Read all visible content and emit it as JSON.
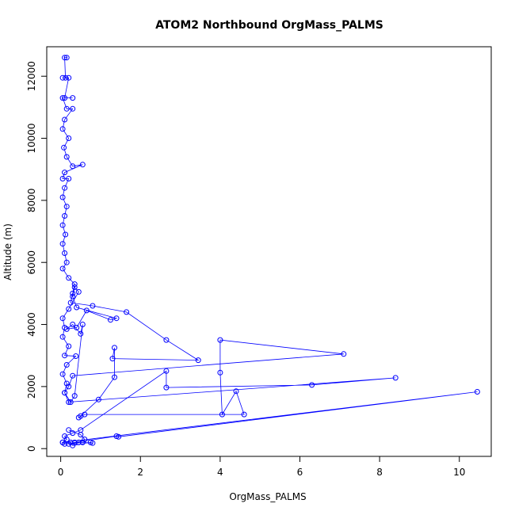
{
  "chart_data": {
    "type": "scatter",
    "title": "ATOM2 Northbound OrgMass_PALMS",
    "xlabel": "OrgMass_PALMS",
    "ylabel": "Altitude (m)",
    "xlim": [
      -0.35,
      10.8
    ],
    "ylim": [
      -250,
      12950
    ],
    "xticks": [
      0,
      2,
      4,
      6,
      8,
      10
    ],
    "yticks": [
      0,
      2000,
      4000,
      6000,
      8000,
      10000,
      12000
    ],
    "grid": false,
    "legend": "none",
    "color": "#0000ff",
    "marker": "open-circle",
    "connected": true,
    "series": [
      {
        "values": [
          [
            0.15,
            12600
          ],
          [
            0.1,
            12600
          ],
          [
            0.12,
            11950
          ],
          [
            0.05,
            11950
          ],
          [
            0.2,
            11950
          ],
          [
            0.1,
            11300
          ],
          [
            0.3,
            11300
          ],
          [
            0.05,
            11300
          ],
          [
            0.15,
            10950
          ],
          [
            0.3,
            10950
          ],
          [
            0.1,
            10600
          ],
          [
            0.05,
            10300
          ],
          [
            0.2,
            10000
          ],
          [
            0.08,
            9700
          ],
          [
            0.15,
            9400
          ],
          [
            0.3,
            9100
          ],
          [
            0.55,
            9150
          ],
          [
            0.1,
            8900
          ],
          [
            0.05,
            8700
          ],
          [
            0.2,
            8700
          ],
          [
            0.1,
            8400
          ],
          [
            0.05,
            8100
          ],
          [
            0.15,
            7800
          ],
          [
            0.1,
            7500
          ],
          [
            0.05,
            7200
          ],
          [
            0.12,
            6900
          ],
          [
            0.05,
            6600
          ],
          [
            0.1,
            6300
          ],
          [
            0.15,
            6000
          ],
          [
            0.05,
            5800
          ],
          [
            0.2,
            5500
          ],
          [
            0.35,
            5300
          ],
          [
            0.3,
            5000
          ],
          [
            0.25,
            4700
          ],
          [
            0.8,
            4600
          ],
          [
            1.65,
            4400
          ],
          [
            2.65,
            3500
          ],
          [
            3.45,
            2850
          ],
          [
            1.3,
            2900
          ],
          [
            1.35,
            3250
          ],
          [
            1.35,
            2300
          ],
          [
            0.95,
            1580
          ],
          [
            0.5,
            1050
          ],
          [
            0.45,
            1000
          ],
          [
            0.6,
            1100
          ],
          [
            4.6,
            1100
          ],
          [
            4.4,
            1850
          ],
          [
            4.05,
            1100
          ],
          [
            4.0,
            2450
          ],
          [
            4.0,
            3500
          ],
          [
            7.1,
            3050
          ],
          [
            0.3,
            2350
          ],
          [
            0.2,
            2000
          ],
          [
            0.1,
            1800
          ],
          [
            0.25,
            1500
          ],
          [
            0.35,
            1700
          ],
          [
            0.55,
            4000
          ],
          [
            0.5,
            3700
          ],
          [
            0.3,
            4000
          ],
          [
            0.15,
            3850
          ],
          [
            0.4,
            3900
          ],
          [
            0.65,
            4450
          ],
          [
            1.25,
            4150
          ],
          [
            1.4,
            4200
          ],
          [
            0.4,
            4550
          ],
          [
            0.3,
            4900
          ],
          [
            0.35,
            5200
          ],
          [
            0.45,
            5050
          ],
          [
            0.2,
            4500
          ],
          [
            0.05,
            4200
          ],
          [
            0.1,
            3900
          ],
          [
            0.05,
            3600
          ],
          [
            0.2,
            3300
          ],
          [
            0.1,
            3000
          ],
          [
            0.38,
            2980
          ],
          [
            0.15,
            2700
          ],
          [
            0.05,
            2400
          ],
          [
            0.15,
            2100
          ],
          [
            0.1,
            1800
          ],
          [
            0.2,
            1500
          ],
          [
            8.4,
            2280
          ],
          [
            6.3,
            2050
          ],
          [
            2.65,
            1970
          ],
          [
            2.65,
            2500
          ],
          [
            0.5,
            600
          ],
          [
            0.3,
            500
          ],
          [
            0.1,
            400
          ],
          [
            0.15,
            300
          ],
          [
            0.05,
            200
          ],
          [
            10.45,
            1830
          ],
          [
            1.45,
            380
          ],
          [
            1.4,
            400
          ],
          [
            0.35,
            200
          ],
          [
            0.2,
            150
          ],
          [
            0.55,
            200
          ],
          [
            0.8,
            180
          ],
          [
            0.75,
            200
          ],
          [
            0.3,
            100
          ],
          [
            0.25,
            200
          ],
          [
            0.05,
            200
          ],
          [
            0.1,
            150
          ],
          [
            0.45,
            200
          ],
          [
            0.6,
            300
          ],
          [
            0.5,
            450
          ],
          [
            0.2,
            600
          ]
        ]
      }
    ]
  }
}
